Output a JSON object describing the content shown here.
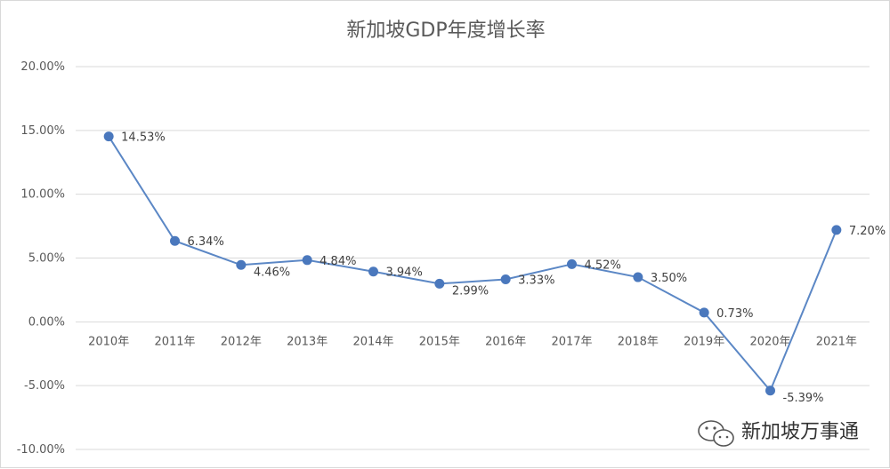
{
  "chart_data": {
    "type": "line",
    "title": "新加坡GDP年度增长率",
    "categories": [
      "2010年",
      "2011年",
      "2012年",
      "2013年",
      "2014年",
      "2015年",
      "2016年",
      "2017年",
      "2018年",
      "2019年",
      "2020年",
      "2021年"
    ],
    "series": [
      {
        "values": [
          14.53,
          6.34,
          4.46,
          4.84,
          3.94,
          2.99,
          3.33,
          4.52,
          3.5,
          0.73,
          -5.39,
          7.2
        ],
        "data_labels": [
          "14.53%",
          "6.34%",
          "4.46%",
          "4.84%",
          "3.94%",
          "2.99%",
          "3.33%",
          "4.52%",
          "3.50%",
          "0.73%",
          "-5.39%",
          "7.20%"
        ]
      }
    ],
    "ylim": [
      -10,
      20
    ],
    "yticks": [
      20,
      15,
      10,
      5,
      0,
      -5,
      -10
    ],
    "ytick_labels": [
      "20.00%",
      "15.00%",
      "10.00%",
      "5.00%",
      "0.00%",
      "-5.00%",
      "-10.00%"
    ],
    "grid": true,
    "legend": "none",
    "colors": {
      "line": "#5b87c5",
      "marker": "#4a78bd"
    }
  },
  "watermark": {
    "icon": "wechat-icon",
    "text": "新加坡万事通"
  }
}
